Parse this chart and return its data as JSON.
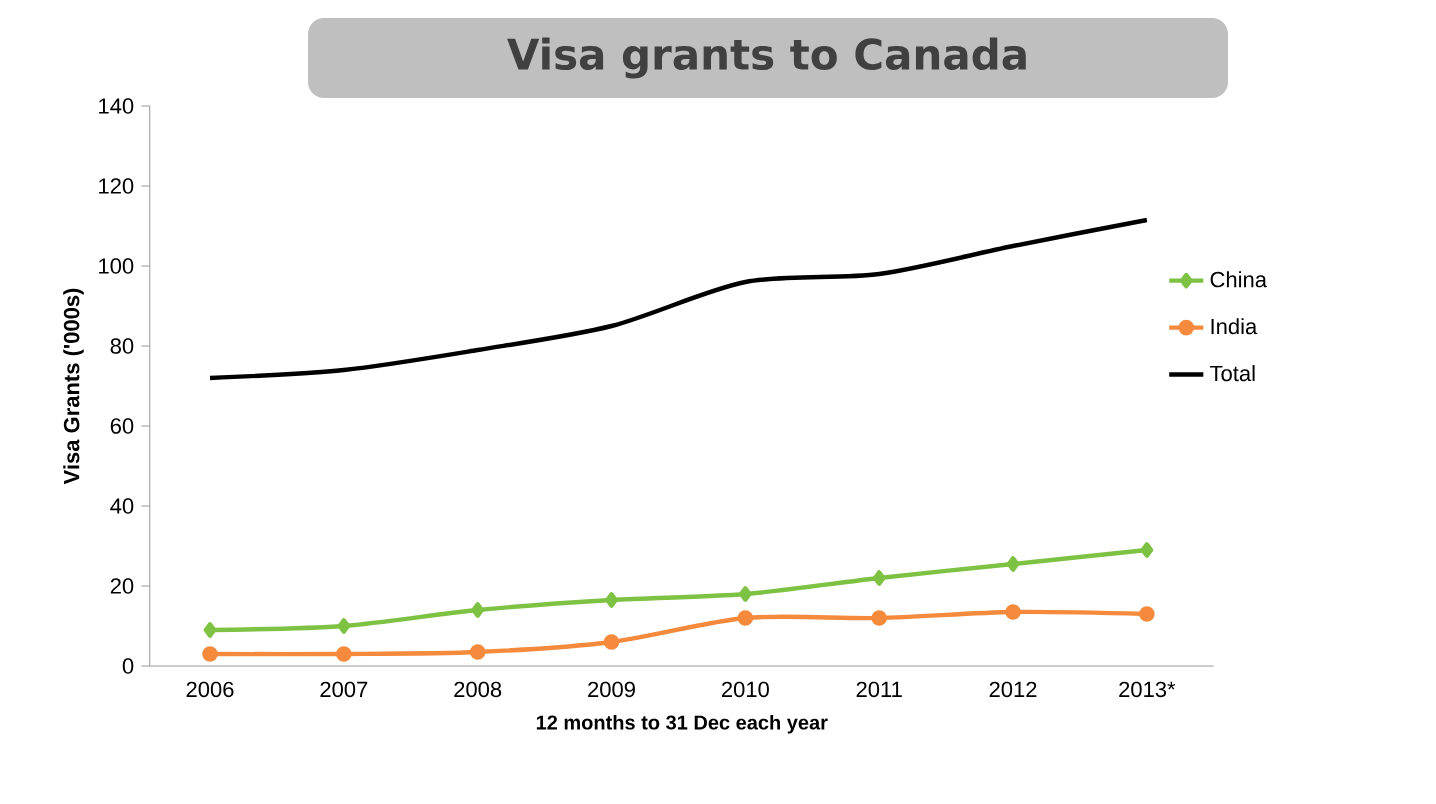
{
  "chart_data": {
    "type": "line",
    "title": "Visa grants to Canada",
    "xlabel": "12 months to 31 Dec each year",
    "ylabel": "Visa Grants ('000s)",
    "categories": [
      "2006",
      "2007",
      "2008",
      "2009",
      "2010",
      "2011",
      "2012",
      "2013*"
    ],
    "series": [
      {
        "name": "China",
        "color": "#7dc243",
        "marker": "diamond",
        "values": [
          9,
          10,
          14,
          16.5,
          18,
          22,
          25.5,
          29
        ]
      },
      {
        "name": "India",
        "color": "#f58a3c",
        "marker": "circle",
        "values": [
          3,
          3,
          3.5,
          6,
          12,
          12,
          13.5,
          13
        ]
      },
      {
        "name": "Total",
        "color": "#000000",
        "marker": "none",
        "values": [
          72,
          74,
          79,
          85,
          96,
          98,
          105,
          111.5
        ]
      }
    ],
    "ylim": [
      0,
      140
    ],
    "yticks": [
      0,
      20,
      40,
      60,
      80,
      100,
      120,
      140
    ],
    "legend": "right"
  }
}
